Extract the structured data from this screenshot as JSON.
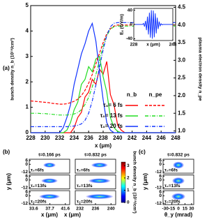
{
  "chart_data": [
    {
      "type": "line",
      "panel_label": "(a)",
      "xlabel": "x (μm)",
      "ylabel": "bunch density n_b (10¹⁸/cm³)",
      "y2label": "plasma electron density n_pe",
      "xlim": [
        228,
        248
      ],
      "xticks": [
        228,
        230,
        232,
        234,
        236,
        238,
        240,
        242,
        244,
        246,
        248
      ],
      "ylim": [
        0,
        5
      ],
      "yticks": [
        0,
        1,
        2,
        3,
        4,
        5
      ],
      "y2lim": [
        0.95,
        4.55
      ],
      "y2ticks": [
        {
          "value": 1.0,
          "label": "1.0"
        },
        {
          "value": 1.5,
          "label": "1.5"
        },
        {
          "value": 2.0,
          "label": "2.0"
        },
        {
          "value": 2.5,
          "label": "2.5"
        },
        {
          "value": 3.0,
          "label": "3.0"
        },
        {
          "value": 3.5,
          "label": "3.5"
        },
        {
          "value": 4.0,
          "label": "4.0"
        },
        {
          "value": 4.5,
          "label": "4.5"
        }
      ],
      "legend_headers": [
        "n_b",
        "n_pe"
      ],
      "x": [
        228,
        228.5,
        229,
        229.5,
        230,
        230.5,
        231,
        231.5,
        232,
        232.5,
        233,
        233.5,
        234,
        234.5,
        235,
        235.5,
        236,
        236.5,
        237,
        237.5,
        238,
        238.5,
        239,
        239.5,
        240,
        240.5,
        241,
        241.5,
        242,
        242.5,
        243,
        243.5,
        244,
        244.5,
        245,
        245.5,
        246,
        246.5,
        247,
        247.5,
        248
      ],
      "series": [
        {
          "name": "τ₀= 6 fs",
          "color": "#ff0000",
          "values": [
            0,
            0,
            0,
            0,
            0,
            0,
            0,
            0,
            0,
            0,
            0,
            0,
            0.2,
            0.6,
            0.8,
            1.4,
            1.6,
            2.1,
            1.9,
            2.5,
            2.3,
            2.8,
            1.5,
            1.1,
            0.3,
            0.1,
            0,
            0,
            0,
            0,
            0,
            0,
            0,
            0,
            0,
            0,
            0,
            0,
            0,
            0,
            0
          ]
        },
        {
          "name": "τ₀= 13 fs",
          "color": "#22dd22",
          "values": [
            0,
            0,
            0,
            0,
            0,
            0,
            0,
            0,
            0,
            0,
            0.1,
            0.4,
            0.9,
            1.2,
            1.9,
            2.1,
            2.6,
            2.4,
            2.9,
            3.0,
            2.2,
            1.6,
            0.6,
            0.2,
            0.05,
            0,
            0,
            0,
            0,
            0,
            0,
            0,
            0,
            0,
            0,
            0,
            0,
            0,
            0,
            0,
            0
          ]
        },
        {
          "name": "τ₀= 20 fs",
          "color": "#1133ff",
          "values": [
            0,
            0,
            0,
            0,
            0,
            0,
            0,
            0,
            0,
            0.2,
            0.6,
            1.1,
            1.9,
            2.5,
            3.1,
            3.5,
            4.0,
            4.3,
            3.6,
            2.4,
            1.3,
            0.4,
            0.1,
            0,
            0,
            0,
            0,
            0,
            0,
            0,
            0,
            0,
            0,
            0,
            0,
            0,
            0,
            0,
            0,
            0,
            0
          ]
        },
        {
          "axis": "y2",
          "dash": "4,2",
          "color": "#ff0000",
          "values": [
            1.85,
            1.84,
            1.83,
            1.82,
            1.81,
            1.8,
            1.78,
            1.77,
            1.76,
            1.76,
            1.77,
            1.8,
            1.84,
            1.9,
            2.0,
            2.15,
            2.35,
            2.6,
            2.9,
            3.2,
            3.5,
            3.75,
            3.9,
            3.97,
            4.0,
            4.0,
            4.0,
            4.0,
            4.0,
            4.0,
            4.0,
            4.0,
            4.0,
            4.0,
            4.0,
            4.0,
            4.0,
            4.0,
            4.0,
            4.0,
            4.0
          ]
        },
        {
          "axis": "y2",
          "dash": "5,2,1,2",
          "color": "#22dd22",
          "values": [
            1.5,
            1.5,
            1.5,
            1.49,
            1.49,
            1.48,
            1.47,
            1.46,
            1.45,
            1.45,
            1.45,
            1.46,
            1.48,
            1.52,
            1.6,
            1.75,
            1.95,
            2.25,
            2.6,
            3.0,
            3.4,
            3.7,
            3.88,
            3.95,
            3.97,
            3.97,
            3.97,
            3.97,
            3.97,
            3.97,
            3.97,
            3.97,
            3.97,
            3.97,
            3.97,
            3.97,
            3.97,
            3.97,
            3.97,
            3.97,
            3.97
          ]
        },
        {
          "axis": "y2",
          "dash": "5,2,1,2",
          "color": "#1133ff",
          "values": [
            1.12,
            1.12,
            1.12,
            1.12,
            1.12,
            1.12,
            1.12,
            1.12,
            1.12,
            1.12,
            1.12,
            1.13,
            1.14,
            1.16,
            1.2,
            1.3,
            1.5,
            1.85,
            2.3,
            2.8,
            3.3,
            3.7,
            3.95,
            4.05,
            4.07,
            4.07,
            4.07,
            4.07,
            4.07,
            4.07,
            4.07,
            4.07,
            4.07,
            4.07,
            4.07,
            4.07,
            4.07,
            4.07,
            4.07,
            4.07,
            4.07
          ]
        }
      ]
    },
    {
      "type": "inset",
      "xlabel": "x (μm)",
      "ylabel": "Eₓ (GV/m)",
      "xlim": [
        228,
        248
      ],
      "xticks": [
        228,
        248
      ],
      "ylim": [
        -45,
        45
      ],
      "yticks": [
        -40,
        0,
        40
      ],
      "color": "#1133ff",
      "x": [
        228,
        228.5,
        229,
        229.5,
        230,
        230.5,
        231,
        231.5,
        232,
        232.5,
        233,
        233.5,
        234,
        234.5,
        235,
        235.5,
        236,
        236.5,
        237,
        237.5,
        238,
        238.5,
        239,
        239.5,
        240,
        240.5,
        241,
        241.5,
        242,
        242.5,
        243,
        243.5,
        244,
        244.5,
        245,
        245.5,
        246,
        246.5,
        247,
        247.5,
        248
      ],
      "values": [
        0,
        0,
        0,
        0,
        0,
        0,
        0,
        0,
        0,
        0,
        3,
        -6,
        10,
        -16,
        22,
        -28,
        33,
        -37,
        40,
        -40,
        39,
        -36,
        31,
        -25,
        19,
        -13,
        8,
        -4,
        2,
        -1,
        0,
        0,
        0,
        0,
        0,
        0,
        0,
        0,
        0,
        0,
        0
      ]
    },
    {
      "type": "heatmap",
      "panel_label": "(b)",
      "xlabel": "x (μm)",
      "ylabel": "y (μm)",
      "columns": [
        {
          "title": "t=0.166 ps",
          "xlim": [
            32.5,
            42.7
          ],
          "xticks": [
            33.6,
            37.7,
            41.6
          ]
        },
        {
          "title": "t=0.832 ps",
          "xlim": [
            230.8,
            241.2
          ],
          "xticks": [
            232,
            236,
            240
          ]
        }
      ],
      "rows": [
        "τ₀=6fs",
        "τ₀=13fs",
        "τ₀=20fs"
      ],
      "ylim": [
        -14,
        8
      ],
      "yticks": [
        6,
        0,
        -12
      ],
      "colorbar": {
        "lim": [
          0,
          3.3
        ],
        "ticks": [
          0,
          1,
          2,
          3
        ],
        "label": "bunch density n_b (10¹⁸/cm³)"
      }
    },
    {
      "type": "heatmap",
      "panel_label": "(c)",
      "xlabel": "θ_y (mrad)",
      "ylabel": "y (μm)",
      "columns": [
        {
          "title": "t=0.832 ps",
          "xlim": [
            -35,
            35
          ],
          "xticks": [
            -30,
            -15,
            0,
            15,
            30
          ]
        }
      ],
      "rows": [
        "τ₀=6fs",
        "τ₀=13fs",
        "τ₀=20fs"
      ],
      "ylim": [
        -14,
        8
      ],
      "yticks": [
        6,
        0,
        -12
      ]
    }
  ]
}
